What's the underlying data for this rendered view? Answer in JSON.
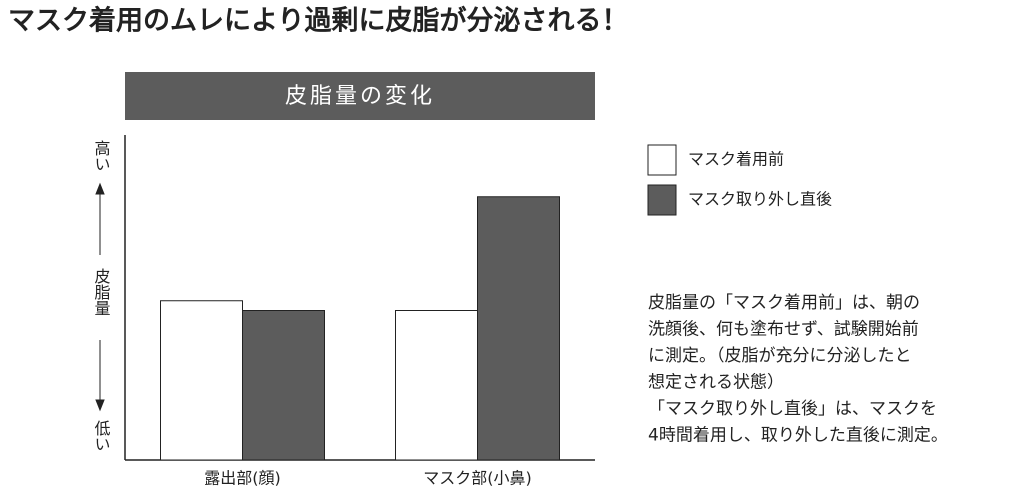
{
  "headline": "マスク着用のムレにより過剰に皮脂が分泌される！",
  "chart_data": {
    "type": "bar",
    "title": "皮脂量の変化",
    "y_label_top": "高い",
    "y_label": "皮脂量",
    "y_label_bottom": "低い",
    "categories": [
      "露出部(顔)",
      "マスク部(小鼻)"
    ],
    "series": [
      {
        "name": "マスク着用前",
        "color": "#ffffff",
        "values": [
          49,
          46
        ]
      },
      {
        "name": "マスク取り外し直後",
        "color": "#5c5c5c",
        "values": [
          46,
          81
        ]
      }
    ],
    "ylim": [
      0,
      100
    ]
  },
  "note": [
    "皮脂量の「マスク着用前」は、朝の",
    "洗顔後、何も塗布せず、試験開始前",
    "に測定。（皮脂が充分に分泌したと",
    "想定される状態）",
    "「マスク取り外し直後」は、マスクを",
    "4時間着用し、取り外した直後に測定。"
  ]
}
